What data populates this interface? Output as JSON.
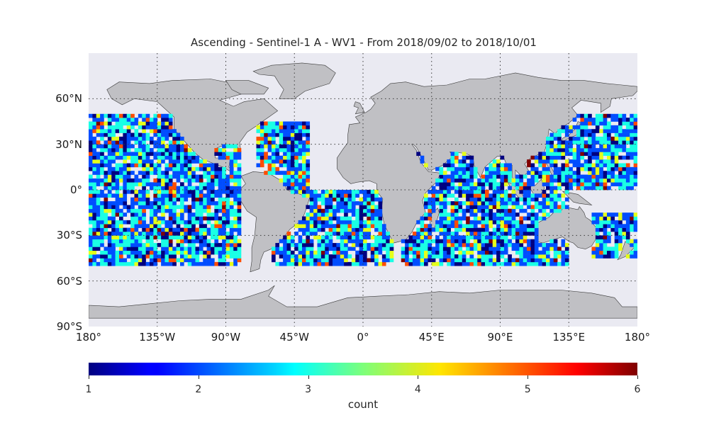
{
  "title": "Ascending - Sentinel-1 A - WV1 - From 2018/09/02 to 2018/10/01",
  "map": {
    "projection": "equirectangular",
    "lon_range": [
      -180,
      180
    ],
    "lat_range": [
      -90,
      90
    ],
    "ocean_color": "#eaeaf2",
    "land_color": "#c0c0c4",
    "coast_color": "#3a3a3a",
    "grid_style": "dotted",
    "grid_color": "#3a3a3a",
    "lat_ticks": [
      {
        "lat": 60,
        "label": "60°N"
      },
      {
        "lat": 30,
        "label": "30°N"
      },
      {
        "lat": 0,
        "label": "0°"
      },
      {
        "lat": -30,
        "label": "30°S"
      },
      {
        "lat": -60,
        "label": "60°S"
      },
      {
        "lat": -90,
        "label": "90°S"
      }
    ],
    "lon_ticks": [
      {
        "lon": -180,
        "label": "180°"
      },
      {
        "lon": -135,
        "label": "135°W"
      },
      {
        "lon": -90,
        "label": "90°W"
      },
      {
        "lon": -45,
        "label": "45°W"
      },
      {
        "lon": 0,
        "label": "0°"
      },
      {
        "lon": 45,
        "label": "45°E"
      },
      {
        "lon": 90,
        "label": "90°E"
      },
      {
        "lon": 135,
        "label": "135°E"
      },
      {
        "lon": 180,
        "label": "180°"
      }
    ]
  },
  "chart_data": {
    "type": "heatmap",
    "title": "Ascending - Sentinel-1 A - WV1 - From 2018/09/02 to 2018/10/01",
    "value_name": "count",
    "value_range": [
      1,
      6
    ],
    "colormap": "jet",
    "colorbar_ticks": [
      1,
      2,
      3,
      4,
      5,
      6
    ],
    "colorbar_label": "count",
    "colorbar_placement": "bottom",
    "lat_coverage": [
      -50,
      50
    ],
    "coverage_regions": [
      {
        "name": "north-pacific-east",
        "lon": [
          -180,
          -115
        ],
        "lat": [
          -50,
          50
        ]
      },
      {
        "name": "pacific-central",
        "lon": [
          -115,
          -80
        ],
        "lat": [
          -50,
          35
        ]
      },
      {
        "name": "north-atlantic",
        "lon": [
          -70,
          -35
        ],
        "lat": [
          0,
          45
        ]
      },
      {
        "name": "south-atlantic",
        "lon": [
          -60,
          20
        ],
        "lat": [
          -50,
          0
        ]
      },
      {
        "name": "indian-ocean",
        "lon": [
          25,
          135
        ],
        "lat": [
          -50,
          25
        ]
      },
      {
        "name": "west-pacific",
        "lon": [
          120,
          180
        ],
        "lat": [
          0,
          50
        ]
      },
      {
        "name": "south-west-pacific",
        "lon": [
          150,
          180
        ],
        "lat": [
          -45,
          -15
        ]
      }
    ]
  }
}
